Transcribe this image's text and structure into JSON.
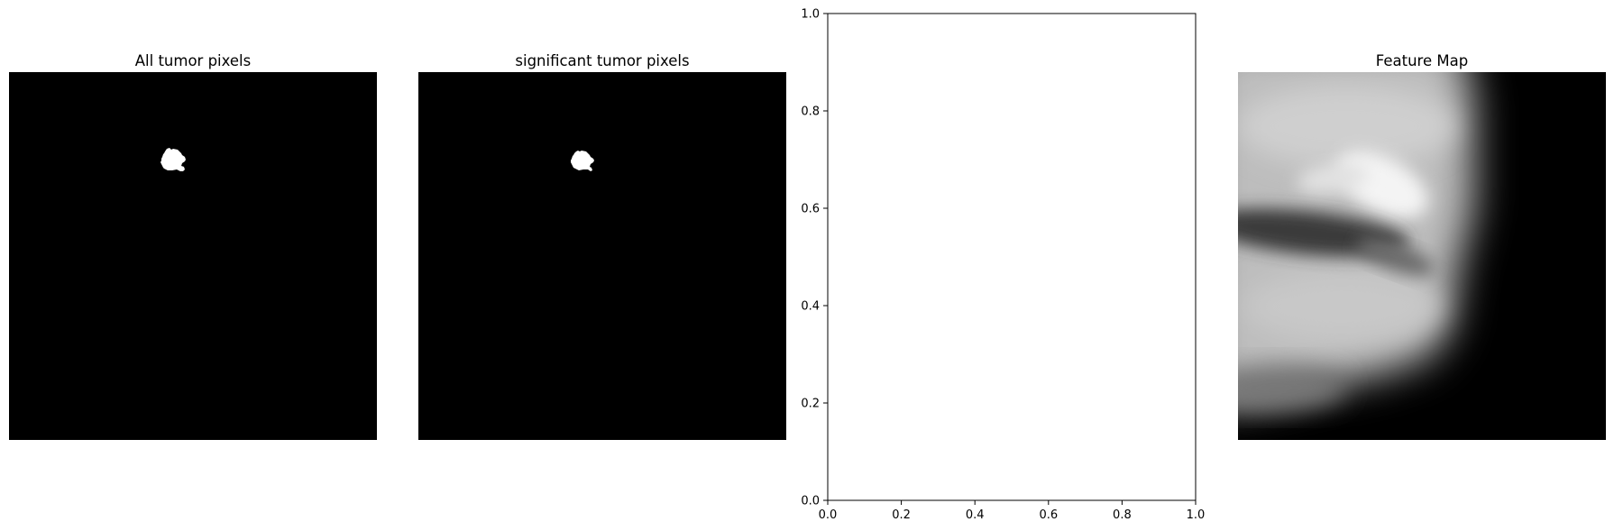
{
  "chart_data": [
    {
      "type": "heatmap",
      "title": "All tumor pixels",
      "colormap": "gray",
      "content": "binary mask with one small white blob near upper-left-center on black background",
      "colors": {
        "background": "#000000",
        "foreground": "#ffffff"
      }
    },
    {
      "type": "heatmap",
      "title": "significant tumor pixels",
      "colormap": "gray",
      "content": "binary mask with one small white blob near upper-left-center on black background",
      "colors": {
        "background": "#000000",
        "foreground": "#ffffff"
      }
    },
    {
      "type": "scatter",
      "title": "",
      "xlabel": "",
      "ylabel": "",
      "xlim": [
        0.0,
        1.0
      ],
      "ylim": [
        0.0,
        1.0
      ],
      "x_ticks": [
        0.0,
        0.2,
        0.4,
        0.6,
        0.8,
        1.0
      ],
      "y_ticks": [
        0.0,
        0.2,
        0.4,
        0.6,
        0.8,
        1.0
      ],
      "x_tick_labels": [
        "0.0",
        "0.2",
        "0.4",
        "0.6",
        "0.8",
        "1.0"
      ],
      "y_tick_labels": [
        "0.0",
        "0.2",
        "0.4",
        "0.6",
        "0.8",
        "1.0"
      ],
      "series": [],
      "grid": false
    },
    {
      "type": "heatmap",
      "title": "Feature Map",
      "colormap": "gray",
      "content": "smooth blurred grayscale feature activation map",
      "colors": {
        "dark": "#000000",
        "light": "#ffffff"
      }
    }
  ]
}
